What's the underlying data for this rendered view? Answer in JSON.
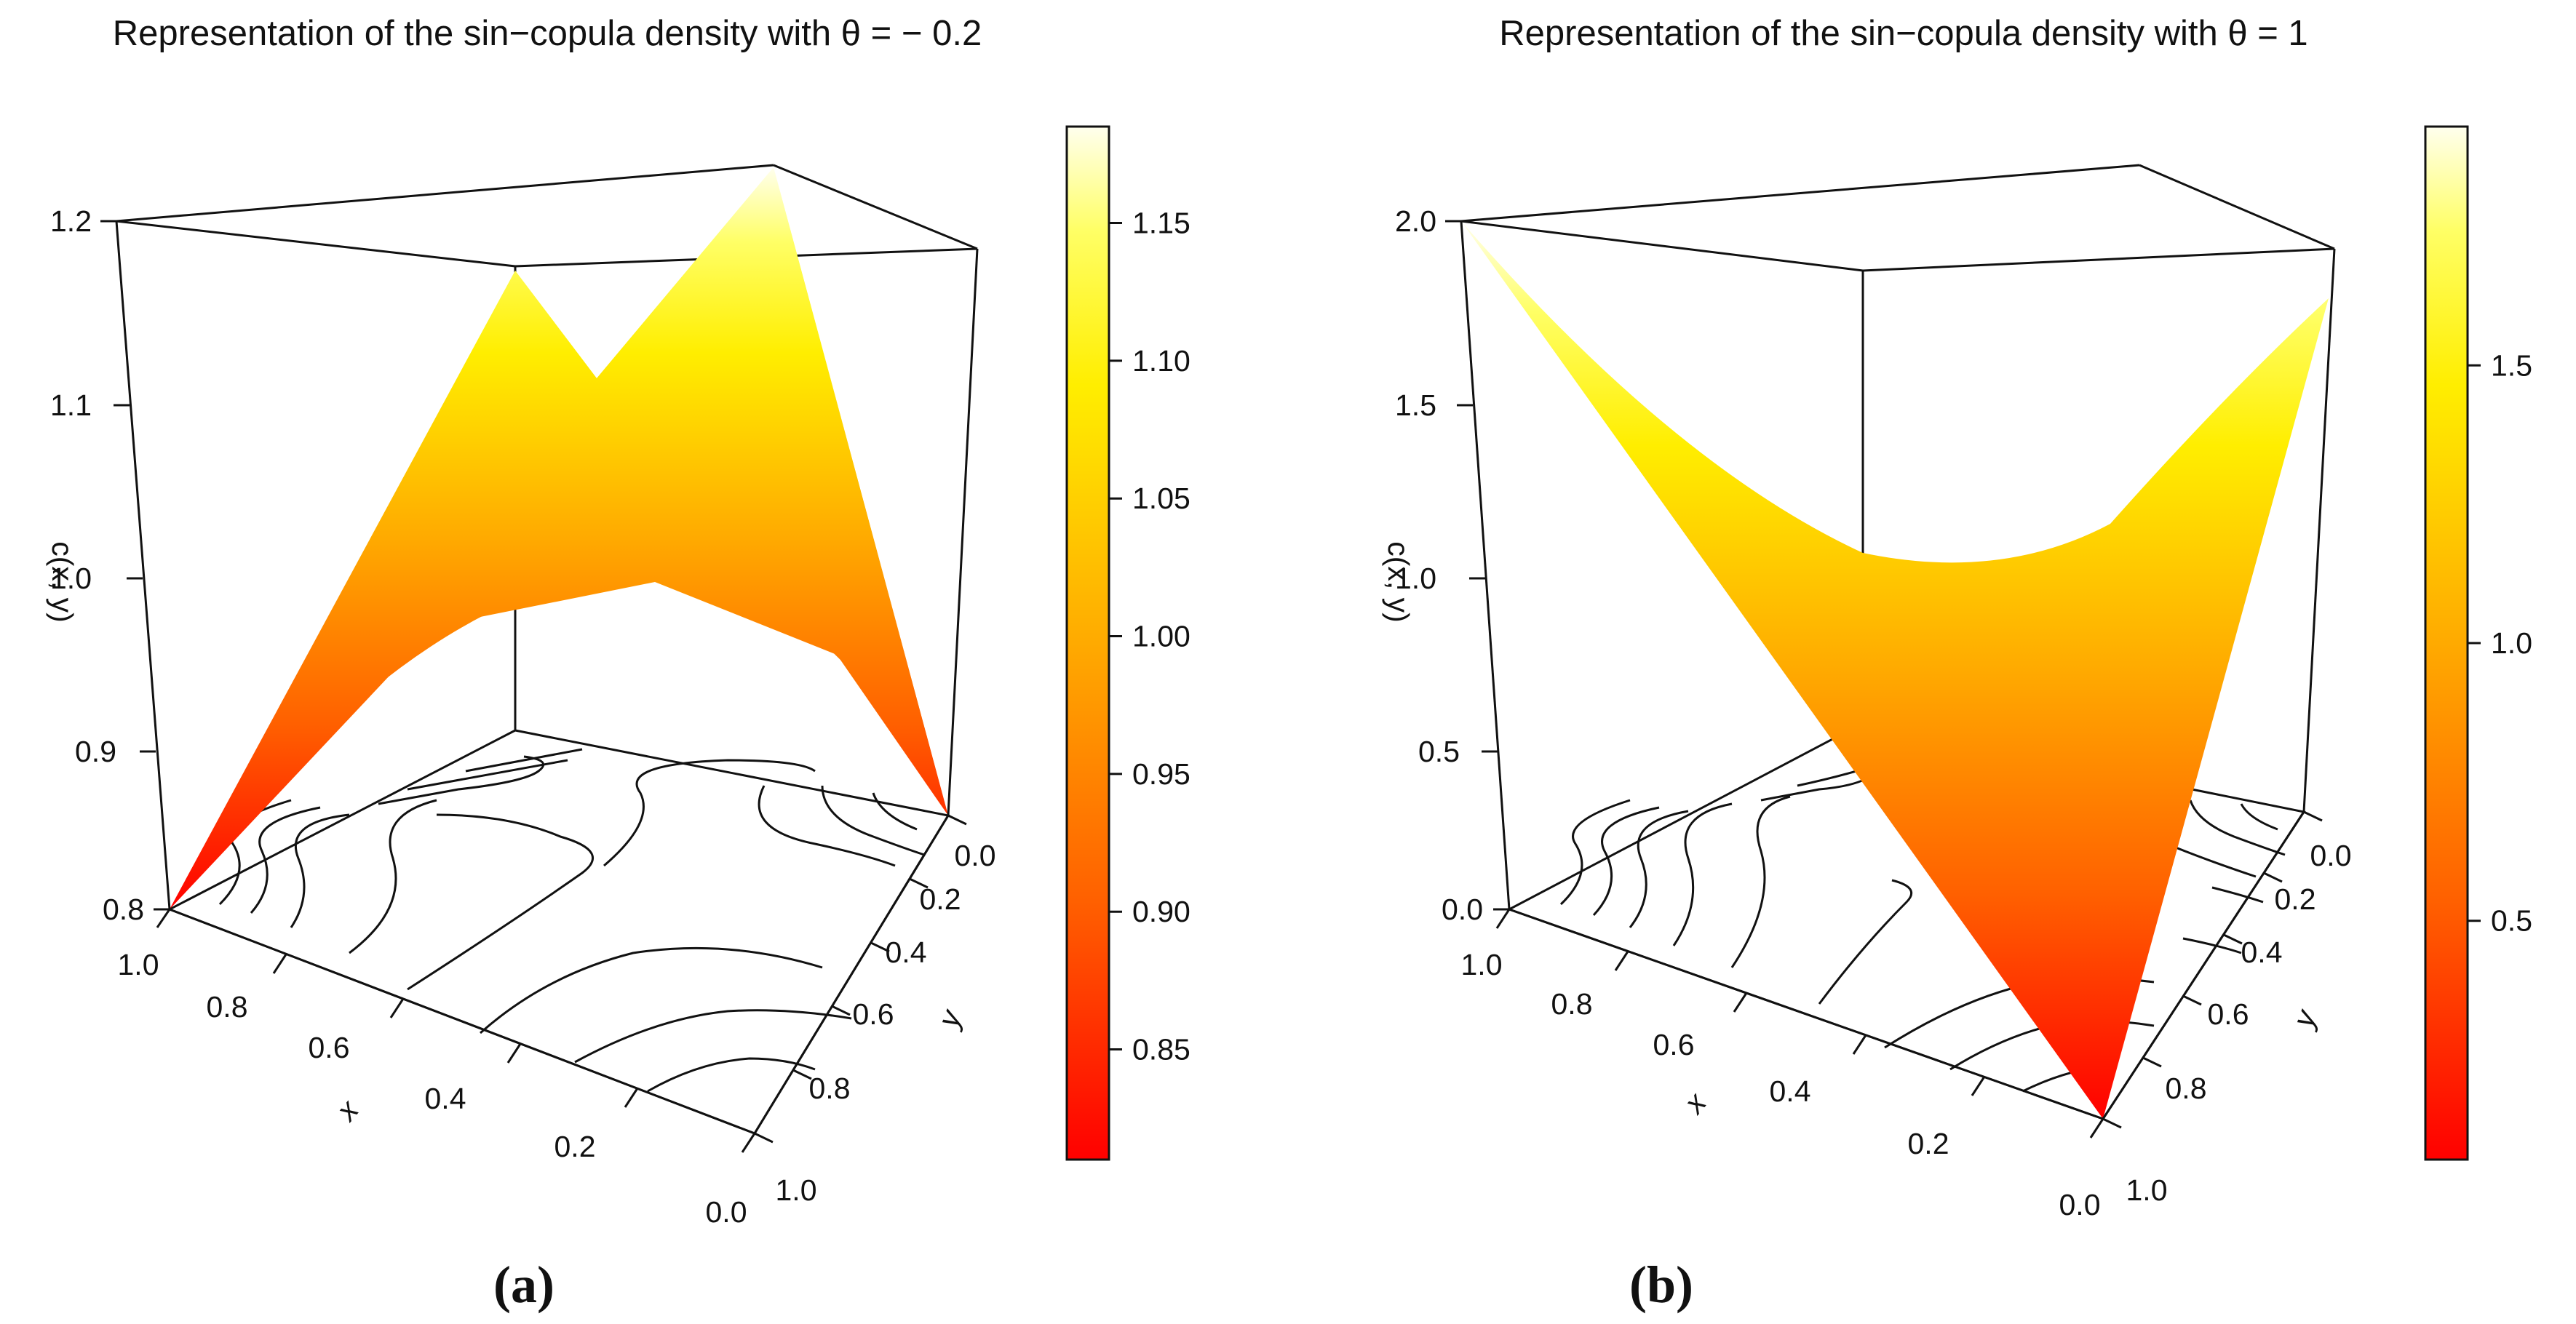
{
  "chart_data": [
    {
      "type": "surface3d",
      "panel_label": "(a)",
      "title": "Representation of the sin−copula density with θ = − 0.2",
      "theta": -0.2,
      "xlabel": "x",
      "ylabel": "y",
      "zlabel": "c(x, y)",
      "x_ticks": [
        "1.0",
        "0.8",
        "0.6",
        "0.4",
        "0.2",
        "0.0"
      ],
      "y_ticks": [
        "0.0",
        "0.2",
        "0.4",
        "0.6",
        "0.8",
        "1.0"
      ],
      "z_ticks": [
        "0.8",
        "0.9",
        "1.0",
        "1.1",
        "1.2"
      ],
      "zlim": [
        0.8,
        1.2
      ],
      "colorbar_ticks": [
        "0.85",
        "0.90",
        "0.95",
        "1.00",
        "1.05",
        "1.10",
        "1.15"
      ],
      "colorbar_range": [
        0.81,
        1.185
      ],
      "colorscale": "heat (red → orange → yellow → white)"
    },
    {
      "type": "surface3d",
      "panel_label": "(b)",
      "title": "Representation of the sin−copula density with θ = 1",
      "theta": 1,
      "xlabel": "x",
      "ylabel": "y",
      "zlabel": "c(x, y)",
      "x_ticks": [
        "1.0",
        "0.8",
        "0.6",
        "0.4",
        "0.2",
        "0.0"
      ],
      "y_ticks": [
        "0.0",
        "0.2",
        "0.4",
        "0.6",
        "0.8",
        "1.0"
      ],
      "z_ticks": [
        "0.0",
        "0.5",
        "1.0",
        "1.5",
        "2.0"
      ],
      "zlim": [
        0.0,
        2.0
      ],
      "colorbar_ticks": [
        "0.5",
        "1.0",
        "1.5"
      ],
      "colorbar_range": [
        0.07,
        1.93
      ],
      "colorscale": "heat (red → orange → yellow → white)"
    }
  ]
}
